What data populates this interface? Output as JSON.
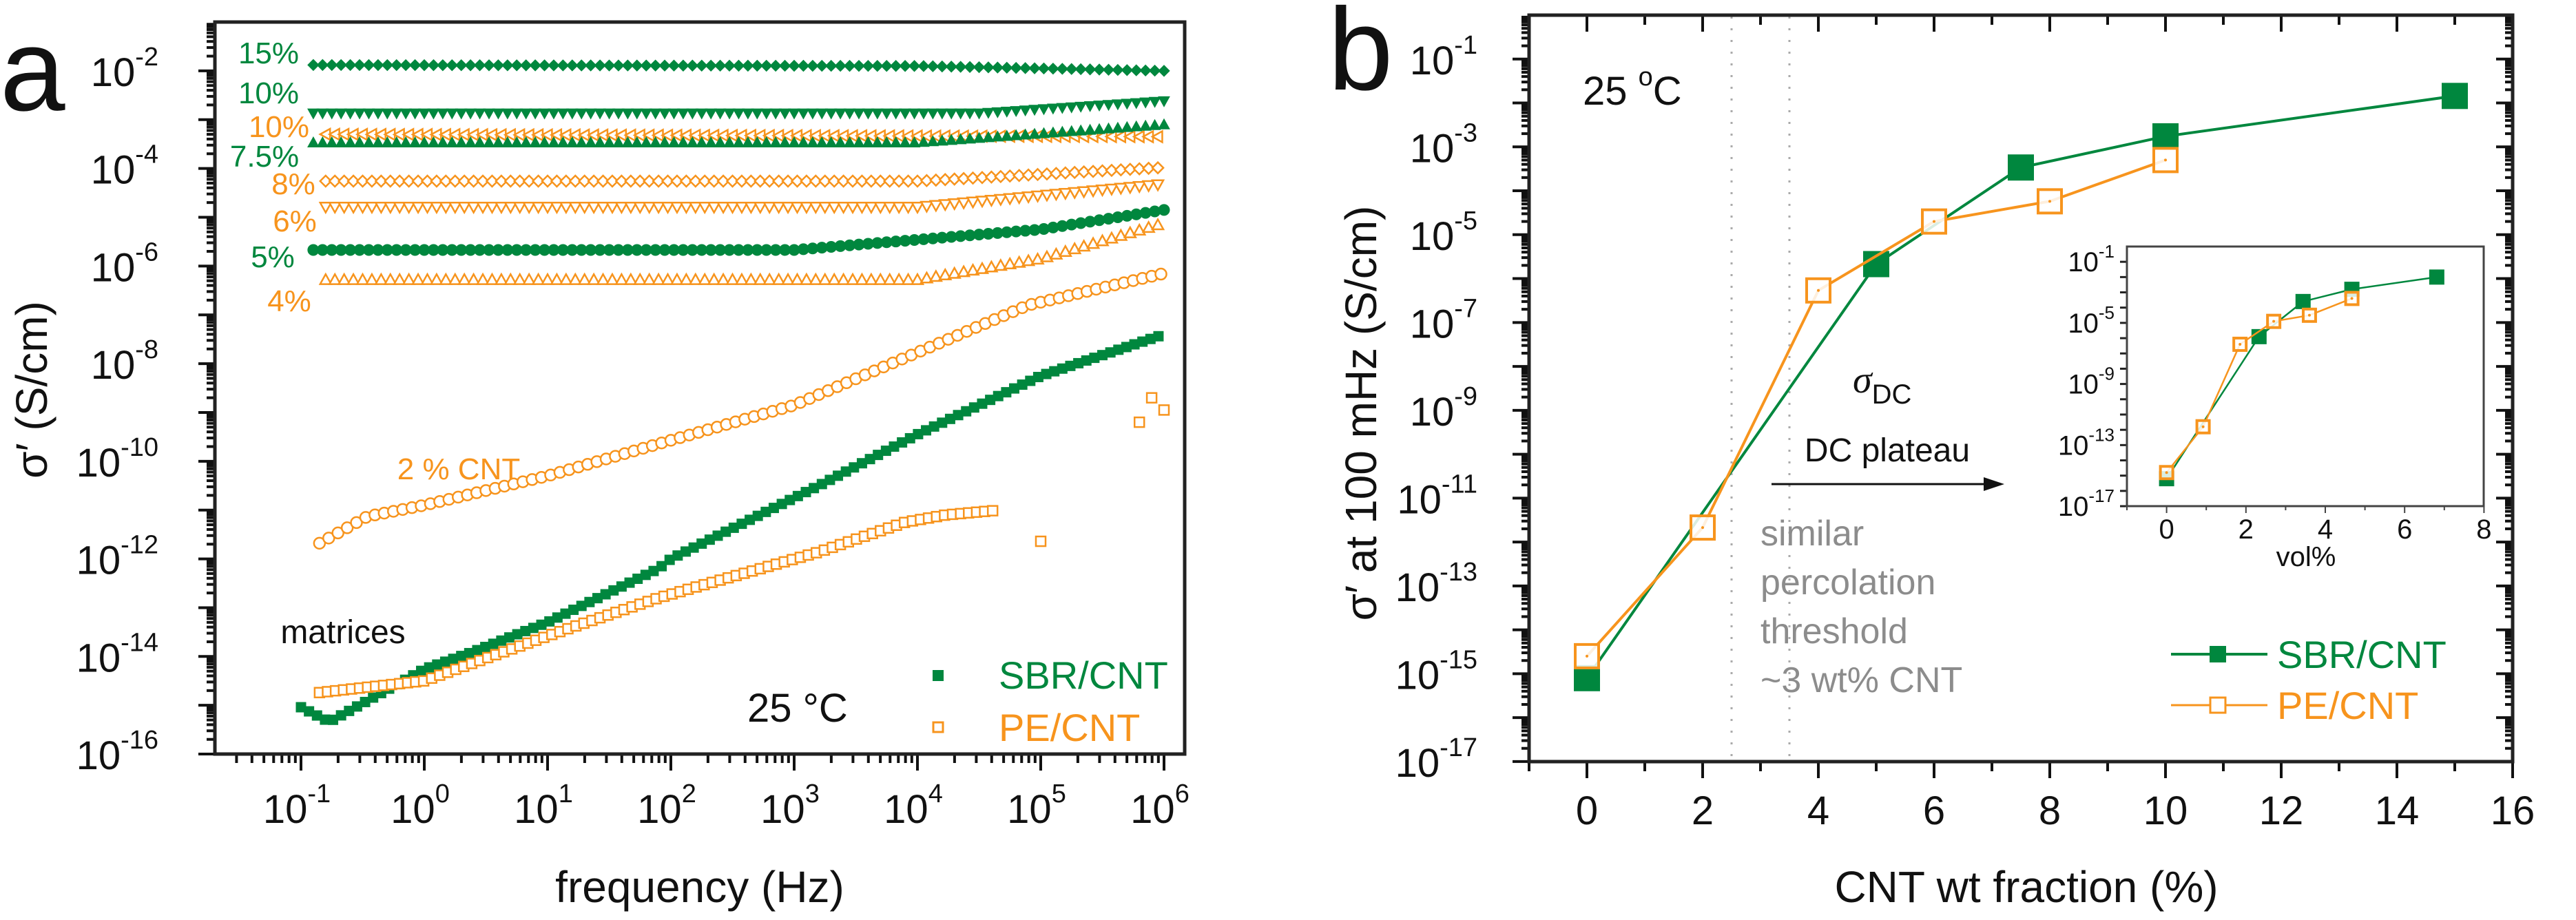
{
  "colors": {
    "sbr": "#00873e",
    "pe": "#f7941d",
    "gray": "#8c8c8c",
    "axis": "#222222"
  },
  "panel_a": {
    "letter": "a",
    "temperature": "25 °C",
    "temperature_num": "25 ",
    "temperature_deg": "o",
    "temperature_unit": "C",
    "matrices_label": "matrices",
    "cnt2_label": "2 % CNT",
    "series_labels": [
      {
        "text": "15%",
        "series": "sbr"
      },
      {
        "text": "10%",
        "series": "sbr"
      },
      {
        "text": "10%",
        "series": "pe"
      },
      {
        "text": "7.5%",
        "series": "sbr"
      },
      {
        "text": "8%",
        "series": "pe"
      },
      {
        "text": "6%",
        "series": "pe"
      },
      {
        "text": "5%",
        "series": "sbr"
      },
      {
        "text": "4%",
        "series": "pe"
      }
    ],
    "legend": [
      {
        "label": "SBR/CNT",
        "series": "sbr"
      },
      {
        "label": "PE/CNT",
        "series": "pe"
      }
    ]
  },
  "panel_b": {
    "letter": "b",
    "temperature_num": "25 ",
    "temperature_deg": "o",
    "temperature_unit": "C",
    "sigma_symbol": "σ",
    "sigma_sub": "DC",
    "dc_plateau": "DC plateau",
    "threshold_lines": [
      "similar",
      "percolation",
      "threshold",
      "~3 wt% CNT"
    ],
    "legend": [
      {
        "label": "SBR/CNT",
        "series": "sbr"
      },
      {
        "label": "PE/CNT",
        "series": "pe"
      }
    ],
    "inset_xlabel": "vol%"
  },
  "chart_data": [
    {
      "type": "scatter",
      "panel": "a",
      "xlabel": "frequency (Hz)",
      "ylabel": "σ′ (S/cm)",
      "xscale": "log",
      "yscale": "log",
      "xlim_log10": [
        -1.7,
        6.17
      ],
      "ylim_log10": [
        -16,
        -1
      ],
      "x_ticks_log10": [
        -1,
        0,
        1,
        2,
        3,
        4,
        5,
        6
      ],
      "y_ticks_log10": [
        -2,
        -4,
        -6,
        -8,
        -10,
        -12,
        -14,
        -16
      ],
      "tick_base": "10",
      "note": "values are log10(frequency/Hz), log10(σ′/(S/cm)) anchor points; markers interpolated along each curve",
      "series": [
        {
          "name": "SBR/CNT 15%",
          "group": "sbr",
          "marker": "diamond",
          "filled": true,
          "points": [
            [
              -0.9,
              -1.88
            ],
            [
              4,
              -1.9
            ],
            [
              6,
              -2.0
            ]
          ]
        },
        {
          "name": "SBR/CNT 10%",
          "group": "sbr",
          "marker": "tri-down",
          "filled": true,
          "points": [
            [
              -0.9,
              -2.87
            ],
            [
              4.5,
              -2.87
            ],
            [
              6,
              -2.62
            ]
          ]
        },
        {
          "name": "PE/CNT 10%",
          "group": "pe",
          "marker": "tri-left",
          "filled": false,
          "points": [
            [
              -0.8,
              -3.3
            ],
            [
              6,
              -3.35
            ]
          ]
        },
        {
          "name": "SBR/CNT 7.5%",
          "group": "sbr",
          "marker": "tri-up",
          "filled": true,
          "points": [
            [
              -0.9,
              -3.47
            ],
            [
              4,
              -3.47
            ],
            [
              6,
              -3.1
            ]
          ]
        },
        {
          "name": "PE/CNT 8%",
          "group": "pe",
          "marker": "diamond",
          "filled": false,
          "points": [
            [
              -0.8,
              -4.26
            ],
            [
              4,
              -4.26
            ],
            [
              6,
              -3.98
            ]
          ]
        },
        {
          "name": "PE/CNT 6%",
          "group": "pe",
          "marker": "tri-down",
          "filled": false,
          "points": [
            [
              -0.8,
              -4.79
            ],
            [
              4,
              -4.79
            ],
            [
              6,
              -4.32
            ]
          ]
        },
        {
          "name": "SBR/CNT 5%",
          "group": "sbr",
          "marker": "circle",
          "filled": true,
          "points": [
            [
              -0.9,
              -5.67
            ],
            [
              3,
              -5.67
            ],
            [
              5,
              -5.25
            ],
            [
              6,
              -4.85
            ]
          ]
        },
        {
          "name": "PE/CNT 4%",
          "group": "pe",
          "marker": "tri-up",
          "filled": false,
          "points": [
            [
              -0.8,
              -6.28
            ],
            [
              4,
              -6.28
            ],
            [
              5,
              -5.85
            ],
            [
              6,
              -5.12
            ]
          ]
        },
        {
          "name": "PE/CNT 2%",
          "group": "pe",
          "marker": "circle",
          "filled": false,
          "points": [
            [
              -0.85,
              -11.68
            ],
            [
              -0.46,
              -11.13
            ],
            [
              0,
              -10.9
            ],
            [
              1,
              -10.3
            ],
            [
              2,
              -9.57
            ],
            [
              3,
              -8.85
            ],
            [
              4,
              -7.77
            ],
            [
              4.9,
              -6.8
            ],
            [
              6,
              -6.15
            ]
          ]
        },
        {
          "name": "SBR matrix",
          "group": "sbr",
          "marker": "square",
          "filled": true,
          "points": [
            [
              -1,
              -15.04
            ],
            [
              -0.77,
              -15.34
            ],
            [
              0,
              -14.26
            ],
            [
              0.4,
              -13.9
            ],
            [
              1,
              -13.3
            ],
            [
              1.9,
              -12.2
            ],
            [
              2,
              -12.0
            ],
            [
              3.2,
              -10.5
            ],
            [
              4,
              -9.45
            ],
            [
              5,
              -8.25
            ],
            [
              6,
              -7.4
            ]
          ]
        },
        {
          "name": "PE matrix",
          "group": "pe",
          "marker": "square",
          "filled": false,
          "points": [
            [
              -0.85,
              -14.74
            ],
            [
              0,
              -14.5
            ],
            [
              0.54,
              -14.0
            ],
            [
              1.2,
              -13.4
            ],
            [
              1.9,
              -12.8
            ],
            [
              2.2,
              -12.58
            ],
            [
              3.2,
              -11.86
            ],
            [
              3.9,
              -11.25
            ],
            [
              4.23,
              -11.1
            ],
            [
              4.67,
              -11.0
            ]
          ],
          "extra_points": [
            [
              5.0,
              -11.64
            ],
            [
              5.8,
              -9.2
            ],
            [
              5.9,
              -8.7
            ],
            [
              6.0,
              -8.95
            ]
          ]
        }
      ]
    },
    {
      "type": "line",
      "panel": "b",
      "xlabel": "CNT wt fraction (%)",
      "ylabel": "σ′ at 100 mHz (S/cm)",
      "yscale": "log",
      "xlim": [
        -1,
        16
      ],
      "ylim_log10": [
        -17,
        0
      ],
      "x_ticks": [
        0,
        2,
        4,
        6,
        8,
        10,
        12,
        14,
        16
      ],
      "y_ticks_log10": [
        -1,
        -3,
        -5,
        -7,
        -9,
        -11,
        -13,
        -15,
        -17
      ],
      "tick_base": "10",
      "threshold_lines_x": [
        2.5,
        3.5
      ],
      "series": [
        {
          "name": "SBR/CNT",
          "group": "sbr",
          "filled": true,
          "x": [
            0,
            5,
            7.5,
            10,
            15
          ],
          "log10_y": [
            -15.1,
            -5.67,
            -3.47,
            -2.76,
            -1.84
          ]
        },
        {
          "name": "PE/CNT",
          "group": "pe",
          "filled": false,
          "x": [
            0,
            2,
            4,
            6,
            8,
            10
          ],
          "log10_y": [
            -14.6,
            -11.67,
            -6.27,
            -4.7,
            -4.24,
            -3.3
          ]
        }
      ]
    },
    {
      "type": "line",
      "panel": "b-inset",
      "xlabel": "vol%",
      "yscale": "log",
      "xlim": [
        -1,
        8
      ],
      "ylim_log10": [
        -17,
        0
      ],
      "x_ticks": [
        0,
        2,
        4,
        6,
        8
      ],
      "y_ticks_log10": [
        -1,
        -5,
        -9,
        -13,
        -17
      ],
      "tick_base": "10",
      "series": [
        {
          "name": "SBR/CNT",
          "group": "sbr",
          "filled": true,
          "x": [
            0,
            2.33,
            3.44,
            4.67,
            6.81
          ],
          "log10_y": [
            -15.2,
            -5.9,
            -3.6,
            -2.8,
            -2.0
          ]
        },
        {
          "name": "PE/CNT",
          "group": "pe",
          "filled": false,
          "x": [
            0,
            0.92,
            1.85,
            2.7,
            3.6,
            4.67
          ],
          "log10_y": [
            -14.8,
            -11.8,
            -6.4,
            -4.9,
            -4.5,
            -3.4
          ]
        }
      ]
    }
  ]
}
